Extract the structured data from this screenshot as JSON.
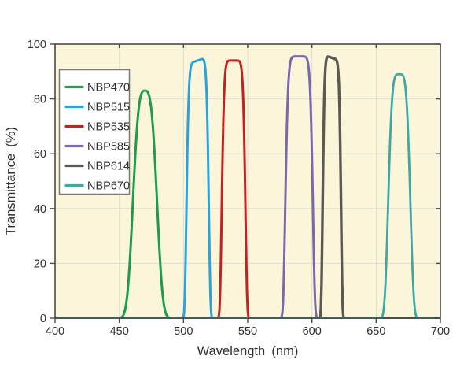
{
  "chart_data": {
    "type": "line",
    "title": "",
    "xlabel": "Wavelength (nm)",
    "ylabel": "Transmittance (%)",
    "xlim": [
      400,
      700
    ],
    "ylim": [
      0,
      100
    ],
    "x_ticks": [
      400,
      450,
      500,
      550,
      600,
      650,
      700
    ],
    "y_ticks": [
      0,
      20,
      40,
      60,
      80,
      100
    ],
    "grid": true,
    "legend_position": "upper-left-inside",
    "colors": {
      "plot_background": "#FBF6D9",
      "outer_background": "#FFFFFF",
      "gridline": "#DFDED2",
      "axis_border": "#4A4A44",
      "legend_border": "#7A7A7A",
      "legend_background": "#FFFFFF",
      "text": "#2E2E2E"
    },
    "series": [
      {
        "name": "NBP470",
        "color": "#1E9B4E",
        "center_nm": 470,
        "peak_transmittance_pct": 83,
        "fwhm_nm": 19,
        "flatness": 1.6,
        "tilt": 0
      },
      {
        "name": "NBP515",
        "color": "#2BA2DB",
        "center_nm": 511,
        "peak_transmittance_pct": 94,
        "fwhm_nm": 17,
        "flatness": 4,
        "tilt": 0.015
      },
      {
        "name": "NBP535",
        "color": "#C32222",
        "center_nm": 539,
        "peak_transmittance_pct": 94,
        "fwhm_nm": 18,
        "flatness": 4,
        "tilt": 0
      },
      {
        "name": "NBP585",
        "color": "#7A68AB",
        "center_nm": 590,
        "peak_transmittance_pct": 95.5,
        "fwhm_nm": 21,
        "flatness": 4,
        "tilt": 0
      },
      {
        "name": "NBP614",
        "color": "#5A5A52",
        "center_nm": 615.5,
        "peak_transmittance_pct": 95,
        "fwhm_nm": 14,
        "flatness": 4,
        "tilt": -0.012
      },
      {
        "name": "NBP670",
        "color": "#3FA7A5",
        "center_nm": 668,
        "peak_transmittance_pct": 89,
        "fwhm_nm": 17,
        "flatness": 2.2,
        "tilt": 0
      }
    ]
  }
}
